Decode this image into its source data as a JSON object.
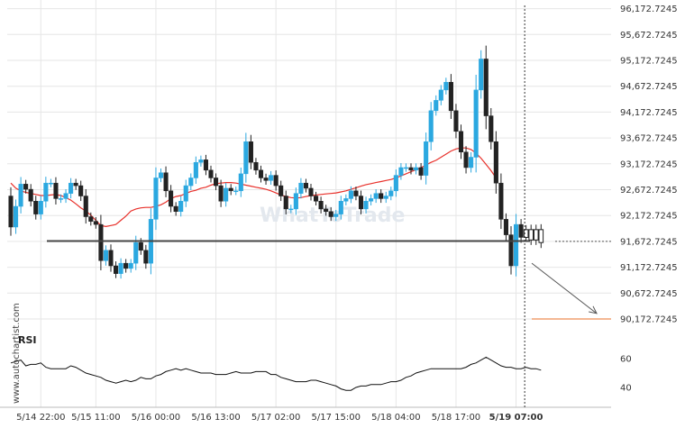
{
  "watermark": "WhatToTrade",
  "credit": "www.autochartist.com",
  "colors": {
    "bull": "#2ba8e0",
    "bear": "#222222",
    "ma": "#e8302a",
    "support": "#444444",
    "forecast": "#e8702a",
    "grid": "#e6e6e6",
    "rsi": "#111111"
  },
  "chart_data": [
    {
      "type": "candlestick",
      "title": "",
      "xlabel": "",
      "ylabel": "",
      "x_tick_labels": [
        "5/14 22:00",
        "5/15 11:00",
        "5/16 00:00",
        "5/16 13:00",
        "5/17 02:00",
        "5/17 15:00",
        "5/18 04:00",
        "5/18 17:00",
        "5/19 07:00"
      ],
      "y_tick_labels": [
        "96,172.7245",
        "95,672.7245",
        "95,172.7245",
        "94,672.7245",
        "94,172.7245",
        "93,672.7245",
        "93,172.7245",
        "92,672.7245",
        "92,172.7245",
        "91,672.7245",
        "91,172.7245",
        "90,672.7245",
        "90,172.7245"
      ],
      "ylim": [
        89900,
        96250
      ],
      "current_price": 91672.7245,
      "support_level": 91680,
      "forecast_level": 90172.7245,
      "grid": true,
      "closes": [
        91950,
        92350,
        92780,
        92680,
        92450,
        92200,
        92450,
        92800,
        92800,
        92500,
        92500,
        92600,
        92800,
        92750,
        92550,
        92150,
        92060,
        92000,
        91300,
        91500,
        91200,
        91050,
        91250,
        91150,
        91250,
        91650,
        91500,
        91250,
        92100,
        92900,
        93000,
        92650,
        92350,
        92250,
        92450,
        92750,
        92900,
        93200,
        93250,
        93050,
        92900,
        92750,
        92450,
        92700,
        92650,
        92650,
        92980,
        93600,
        93200,
        93050,
        92900,
        92850,
        92950,
        92750,
        92550,
        92300,
        92300,
        92600,
        92800,
        92700,
        92550,
        92450,
        92300,
        92250,
        92150,
        92200,
        92450,
        92500,
        92650,
        92550,
        92300,
        92450,
        92500,
        92600,
        92500,
        92550,
        92650,
        92950,
        93100,
        93100,
        93050,
        93100,
        92950,
        93600,
        94200,
        94400,
        94600,
        94750,
        94200,
        93800,
        93400,
        93100,
        93300,
        94600,
        95200,
        94100,
        93600,
        92800,
        92100,
        91800,
        91200,
        92000,
        91750,
        91900,
        91700,
        91900,
        91650
      ],
      "ma_values": [
        92800,
        92700,
        92650,
        92620,
        92600,
        92580,
        92560,
        92560,
        92570,
        92580,
        92560,
        92520,
        92470,
        92400,
        92320,
        92260,
        92180,
        92080,
        91980,
        91960,
        91980,
        92000,
        92080,
        92160,
        92260,
        92300,
        92320,
        92330,
        92330,
        92350,
        92380,
        92430,
        92500,
        92540,
        92560,
        92600,
        92640,
        92660,
        92700,
        92720,
        92760,
        92790,
        92800,
        92810,
        92810,
        92800,
        92780,
        92760,
        92740,
        92720,
        92700,
        92680,
        92650,
        92610,
        92570,
        92540,
        92520,
        92510,
        92520,
        92540,
        92560,
        92570,
        92580,
        92590,
        92600,
        92610,
        92630,
        92650,
        92680,
        92710,
        92740,
        92770,
        92790,
        92810,
        92830,
        92850,
        92870,
        92900,
        92940,
        92980,
        93020,
        93060,
        93100,
        93150,
        93200,
        93240,
        93300,
        93360,
        93420,
        93460,
        93480,
        93480,
        93450,
        93380,
        93280,
        93160,
        93040,
        92900
      ]
    },
    {
      "type": "line",
      "title": "RSI",
      "y_tick_labels": [
        "60",
        "40"
      ],
      "ylim": [
        34,
        66
      ],
      "values": [
        57,
        58,
        59,
        55,
        56,
        56,
        57,
        54,
        53,
        53,
        53,
        53,
        55,
        54,
        52,
        50,
        49,
        48,
        47,
        45,
        44,
        43,
        44,
        45,
        44,
        45,
        47,
        46,
        46,
        48,
        49,
        51,
        52,
        53,
        52,
        53,
        52,
        51,
        50,
        50,
        50,
        49,
        49,
        49,
        50,
        51,
        50,
        50,
        50,
        51,
        51,
        51,
        49,
        49,
        47,
        46,
        45,
        44,
        44,
        44,
        45,
        45,
        44,
        43,
        42,
        41,
        39,
        38,
        38,
        40,
        41,
        41,
        42,
        42,
        42,
        43,
        44,
        44,
        45,
        47,
        48,
        50,
        51,
        52,
        53,
        53,
        53,
        53,
        53,
        53,
        53,
        54,
        56,
        57,
        59,
        61,
        59,
        57,
        55,
        54,
        54,
        53,
        53,
        54,
        53,
        53,
        52
      ]
    }
  ]
}
